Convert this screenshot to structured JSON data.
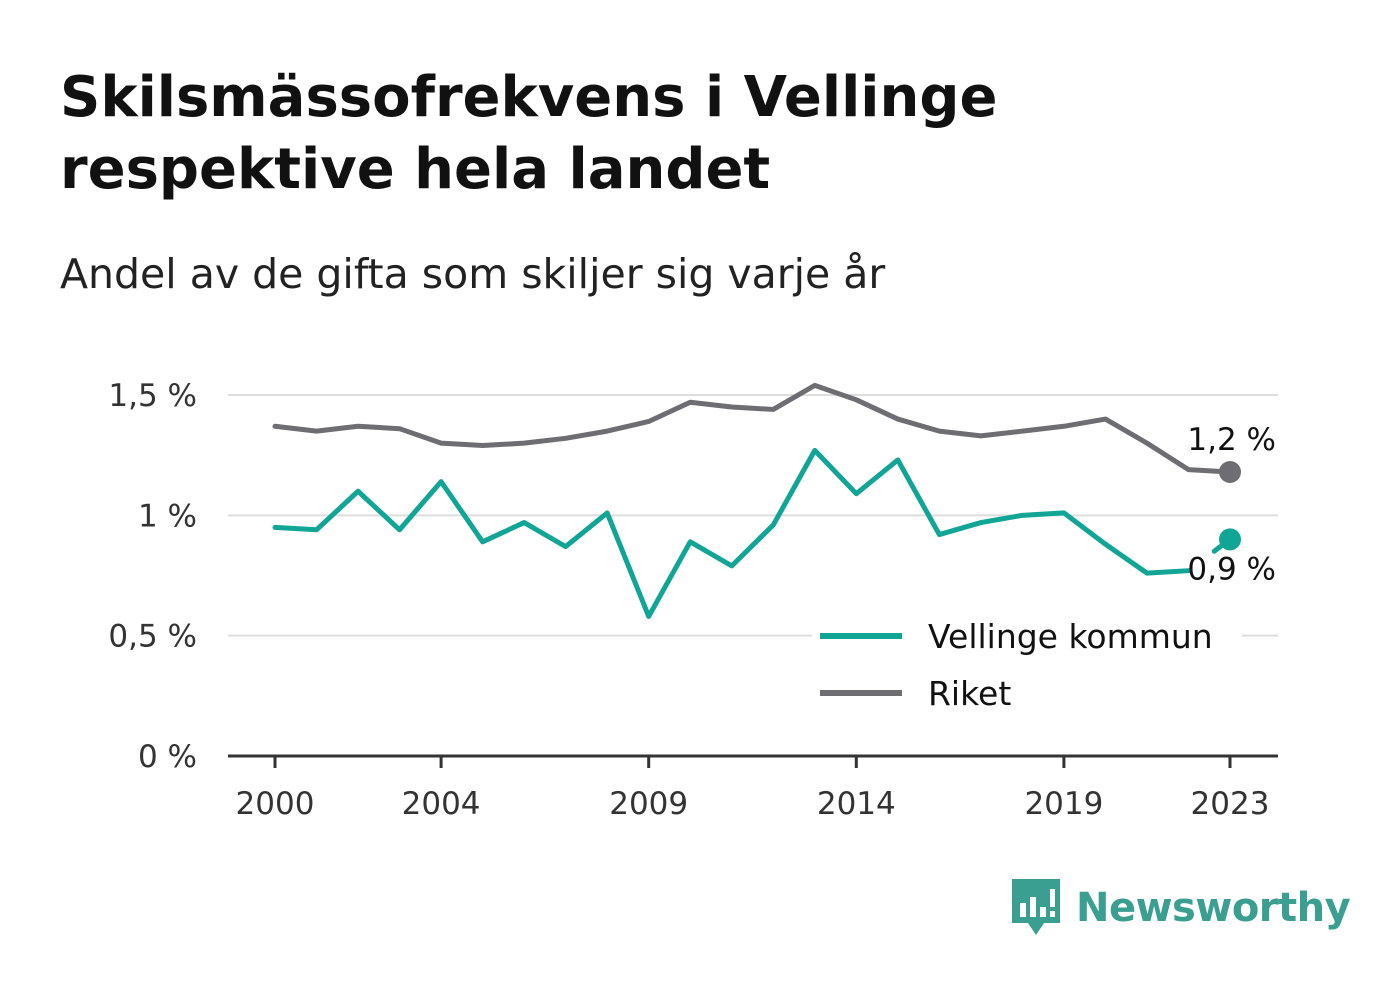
{
  "title": "Skilsmässofrekvens i Vellinge respektive hela landet",
  "subtitle": "Andel av de gifta som skiljer sig varje år",
  "brand": {
    "name": "Newsworthy",
    "icon": "newsworthy-logo-icon",
    "color": "#3a9e90"
  },
  "chart_data": {
    "type": "line",
    "x": [
      2000,
      2001,
      2002,
      2003,
      2004,
      2005,
      2006,
      2007,
      2008,
      2009,
      2010,
      2011,
      2012,
      2013,
      2014,
      2015,
      2016,
      2017,
      2018,
      2019,
      2020,
      2021,
      2022,
      2023
    ],
    "x_ticks": [
      2000,
      2004,
      2009,
      2014,
      2019,
      2023
    ],
    "x_tick_labels": [
      "2000",
      "2004",
      "2009",
      "2014",
      "2019",
      "2023"
    ],
    "ylim": [
      0,
      1.55
    ],
    "y_ticks": [
      0,
      0.5,
      1,
      1.5
    ],
    "y_tick_labels": [
      "0 %",
      "0,5 %",
      "1 %",
      "1,5 %"
    ],
    "grid": true,
    "legend_position": "bottom-right",
    "series": [
      {
        "name": "Vellinge kommun",
        "color": "#11a596",
        "values": [
          0.95,
          0.94,
          1.1,
          0.94,
          1.14,
          0.89,
          0.97,
          0.87,
          1.01,
          0.58,
          0.89,
          0.79,
          0.96,
          1.27,
          1.09,
          1.23,
          0.92,
          0.97,
          1.0,
          1.01,
          0.88,
          0.76,
          0.77,
          0.9
        ],
        "gap_before_last": true,
        "end_label": "0,9 %"
      },
      {
        "name": "Riket",
        "color": "#6e6d72",
        "values": [
          1.37,
          1.35,
          1.37,
          1.36,
          1.3,
          1.29,
          1.3,
          1.32,
          1.35,
          1.39,
          1.47,
          1.45,
          1.44,
          1.54,
          1.48,
          1.4,
          1.35,
          1.33,
          1.35,
          1.37,
          1.4,
          1.3,
          1.19,
          1.18
        ],
        "gap_before_last": false,
        "end_label": "1,2 %"
      }
    ]
  }
}
